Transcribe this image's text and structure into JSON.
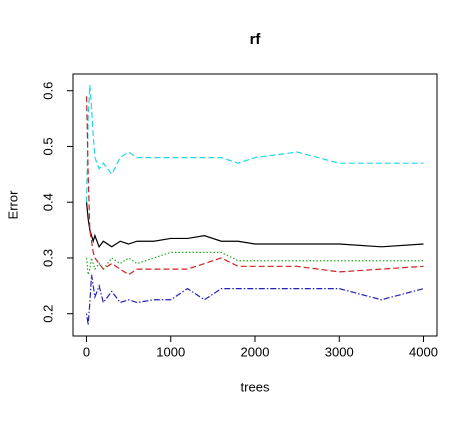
{
  "chart_data": {
    "type": "line",
    "title": "rf",
    "x_label": "trees",
    "y_label": "Error",
    "x": [
      1,
      20,
      40,
      60,
      80,
      100,
      150,
      200,
      300,
      400,
      500,
      600,
      800,
      1000,
      1200,
      1400,
      1600,
      1800,
      2000,
      2500,
      3000,
      3500,
      4000
    ],
    "series": [
      {
        "color": "#000000",
        "dash": "solid",
        "values": [
          0.4,
          0.37,
          0.35,
          0.34,
          0.33,
          0.34,
          0.32,
          0.33,
          0.32,
          0.33,
          0.325,
          0.33,
          0.33,
          0.335,
          0.335,
          0.34,
          0.33,
          0.33,
          0.325,
          0.325,
          0.325,
          0.32,
          0.325
        ]
      },
      {
        "color": "#22d8e6",
        "dash": "dashed",
        "values": [
          0.4,
          0.55,
          0.61,
          0.57,
          0.52,
          0.48,
          0.46,
          0.47,
          0.45,
          0.48,
          0.49,
          0.48,
          0.48,
          0.48,
          0.48,
          0.48,
          0.48,
          0.47,
          0.48,
          0.49,
          0.47,
          0.47,
          0.47
        ]
      },
      {
        "color": "#cc2222",
        "dash": "dashed",
        "values": [
          0.59,
          0.45,
          0.35,
          0.33,
          0.31,
          0.3,
          0.29,
          0.28,
          0.29,
          0.28,
          0.27,
          0.28,
          0.28,
          0.28,
          0.28,
          0.29,
          0.3,
          0.285,
          0.285,
          0.285,
          0.275,
          0.28,
          0.285
        ]
      },
      {
        "color": "#22aa22",
        "dash": "dotted",
        "values": [
          0.3,
          0.27,
          0.28,
          0.3,
          0.29,
          0.28,
          0.29,
          0.28,
          0.3,
          0.29,
          0.3,
          0.29,
          0.3,
          0.31,
          0.31,
          0.31,
          0.31,
          0.295,
          0.295,
          0.295,
          0.295,
          0.295,
          0.295
        ]
      },
      {
        "color": "#2222bb",
        "dash": "dotdash",
        "values": [
          0.2,
          0.18,
          0.22,
          0.27,
          0.25,
          0.23,
          0.25,
          0.22,
          0.24,
          0.22,
          0.225,
          0.22,
          0.225,
          0.225,
          0.245,
          0.225,
          0.245,
          0.245,
          0.245,
          0.245,
          0.245,
          0.225,
          0.245
        ]
      }
    ],
    "xlim": [
      -160,
      4160
    ],
    "xticks": [
      0,
      1000,
      2000,
      3000,
      4000
    ],
    "ylim": [
      0.16,
      0.63
    ],
    "yticks": [
      0.2,
      0.3,
      0.4,
      0.5,
      0.6
    ]
  }
}
